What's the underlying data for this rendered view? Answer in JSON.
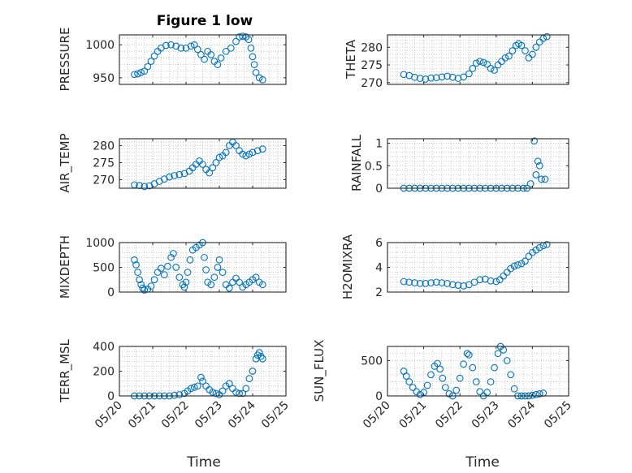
{
  "chart_data": [
    {
      "type": "scatter",
      "title": "Figure 1 low",
      "ylabel": "PRESSURE",
      "xlim": [
        "05/20",
        "05/25"
      ],
      "ylim": [
        940,
        1015
      ],
      "yticks": [
        950,
        1000
      ],
      "grid": true,
      "points": [
        [
          20.45,
          955
        ],
        [
          20.55,
          956
        ],
        [
          20.65,
          958
        ],
        [
          20.75,
          960
        ],
        [
          20.85,
          967
        ],
        [
          20.95,
          975
        ],
        [
          21.05,
          983
        ],
        [
          21.15,
          990
        ],
        [
          21.25,
          995
        ],
        [
          21.4,
          999
        ],
        [
          21.55,
          1000
        ],
        [
          21.7,
          998
        ],
        [
          21.85,
          995
        ],
        [
          22.0,
          995
        ],
        [
          22.15,
          998
        ],
        [
          22.25,
          1000
        ],
        [
          22.35,
          993
        ],
        [
          22.45,
          985
        ],
        [
          22.55,
          978
        ],
        [
          22.65,
          990
        ],
        [
          22.75,
          985
        ],
        [
          22.85,
          975
        ],
        [
          22.95,
          970
        ],
        [
          23.05,
          980
        ],
        [
          23.2,
          990
        ],
        [
          23.35,
          995
        ],
        [
          23.5,
          1005
        ],
        [
          23.6,
          1012
        ],
        [
          23.7,
          1013
        ],
        [
          23.8,
          1012
        ],
        [
          23.88,
          1008
        ],
        [
          23.95,
          995
        ],
        [
          24.0,
          982
        ],
        [
          24.05,
          970
        ],
        [
          24.1,
          958
        ],
        [
          24.2,
          950
        ],
        [
          24.3,
          947
        ]
      ]
    },
    {
      "type": "scatter",
      "ylabel": "THETA",
      "xlim": [
        "05/20",
        "05/25"
      ],
      "ylim": [
        269.5,
        283.5
      ],
      "yticks": [
        270,
        275,
        280
      ],
      "grid": true,
      "points": [
        [
          20.45,
          272.3
        ],
        [
          20.6,
          272
        ],
        [
          20.75,
          271.5
        ],
        [
          20.9,
          271.2
        ],
        [
          21.05,
          271
        ],
        [
          21.2,
          271.3
        ],
        [
          21.35,
          271.4
        ],
        [
          21.5,
          271.6
        ],
        [
          21.65,
          271.8
        ],
        [
          21.8,
          271.5
        ],
        [
          21.95,
          271.2
        ],
        [
          22.1,
          271.6
        ],
        [
          22.25,
          272.5
        ],
        [
          22.35,
          274
        ],
        [
          22.45,
          275.5
        ],
        [
          22.55,
          276
        ],
        [
          22.65,
          275.7
        ],
        [
          22.75,
          275.2
        ],
        [
          22.85,
          274
        ],
        [
          22.95,
          273.5
        ],
        [
          23.05,
          275
        ],
        [
          23.15,
          276
        ],
        [
          23.25,
          277
        ],
        [
          23.35,
          277.5
        ],
        [
          23.45,
          279
        ],
        [
          23.55,
          280.5
        ],
        [
          23.62,
          281
        ],
        [
          23.7,
          280.5
        ],
        [
          23.8,
          279
        ],
        [
          23.9,
          277
        ],
        [
          24.0,
          278
        ],
        [
          24.1,
          280
        ],
        [
          24.2,
          281.5
        ],
        [
          24.3,
          282.5
        ],
        [
          24.4,
          283
        ]
      ]
    },
    {
      "type": "scatter",
      "ylabel": "AIR_TEMP",
      "xlim": [
        "05/20",
        "05/25"
      ],
      "ylim": [
        267.5,
        282
      ],
      "yticks": [
        270,
        275,
        280
      ],
      "grid": true,
      "points": [
        [
          20.45,
          268.5
        ],
        [
          20.6,
          268.3
        ],
        [
          20.75,
          268
        ],
        [
          20.9,
          268.2
        ],
        [
          21.05,
          268.8
        ],
        [
          21.2,
          269.5
        ],
        [
          21.35,
          270.2
        ],
        [
          21.5,
          270.8
        ],
        [
          21.65,
          271.2
        ],
        [
          21.8,
          271.5
        ],
        [
          21.95,
          271.8
        ],
        [
          22.1,
          272.5
        ],
        [
          22.2,
          273.5
        ],
        [
          22.3,
          274.5
        ],
        [
          22.4,
          275.5
        ],
        [
          22.5,
          274.5
        ],
        [
          22.6,
          273
        ],
        [
          22.7,
          272
        ],
        [
          22.8,
          273.5
        ],
        [
          22.9,
          275
        ],
        [
          23.0,
          276.5
        ],
        [
          23.1,
          277
        ],
        [
          23.2,
          278
        ],
        [
          23.3,
          280
        ],
        [
          23.4,
          281
        ],
        [
          23.5,
          280
        ],
        [
          23.6,
          278.5
        ],
        [
          23.7,
          277.5
        ],
        [
          23.8,
          277
        ],
        [
          23.9,
          277.5
        ],
        [
          24.0,
          278
        ],
        [
          24.15,
          278.5
        ],
        [
          24.3,
          279
        ]
      ]
    },
    {
      "type": "scatter",
      "ylabel": "RAINFALL",
      "xlim": [
        "05/20",
        "05/25"
      ],
      "ylim": [
        0,
        1.1
      ],
      "yticks": [
        0,
        0.5,
        1
      ],
      "grid": true,
      "points": [
        [
          20.45,
          0
        ],
        [
          20.6,
          0
        ],
        [
          20.75,
          0
        ],
        [
          20.9,
          0
        ],
        [
          21.05,
          0
        ],
        [
          21.2,
          0
        ],
        [
          21.35,
          0
        ],
        [
          21.5,
          0
        ],
        [
          21.65,
          0
        ],
        [
          21.8,
          0
        ],
        [
          21.95,
          0
        ],
        [
          22.1,
          0
        ],
        [
          22.25,
          0
        ],
        [
          22.4,
          0
        ],
        [
          22.55,
          0
        ],
        [
          22.7,
          0
        ],
        [
          22.85,
          0
        ],
        [
          23.0,
          0
        ],
        [
          23.15,
          0
        ],
        [
          23.3,
          0
        ],
        [
          23.45,
          0
        ],
        [
          23.6,
          0
        ],
        [
          23.75,
          0
        ],
        [
          23.85,
          0
        ],
        [
          23.95,
          0.1
        ],
        [
          24.05,
          1.05
        ],
        [
          24.1,
          0.3
        ],
        [
          24.15,
          0.6
        ],
        [
          24.2,
          0.5
        ],
        [
          24.25,
          0.2
        ],
        [
          24.35,
          0.2
        ]
      ]
    },
    {
      "type": "scatter",
      "ylabel": "MIXDEPTH",
      "xlim": [
        "05/20",
        "05/25"
      ],
      "ylim": [
        0,
        1000
      ],
      "yticks": [
        0,
        500,
        1000
      ],
      "grid": true,
      "points": [
        [
          20.45,
          650
        ],
        [
          20.5,
          550
        ],
        [
          20.55,
          400
        ],
        [
          20.6,
          250
        ],
        [
          20.65,
          150
        ],
        [
          20.7,
          80
        ],
        [
          20.75,
          40
        ],
        [
          20.85,
          60
        ],
        [
          20.95,
          120
        ],
        [
          21.05,
          250
        ],
        [
          21.15,
          400
        ],
        [
          21.25,
          480
        ],
        [
          21.35,
          350
        ],
        [
          21.45,
          520
        ],
        [
          21.55,
          700
        ],
        [
          21.62,
          780
        ],
        [
          21.7,
          500
        ],
        [
          21.8,
          300
        ],
        [
          21.9,
          150
        ],
        [
          21.95,
          100
        ],
        [
          22.0,
          200
        ],
        [
          22.05,
          400
        ],
        [
          22.12,
          650
        ],
        [
          22.2,
          850
        ],
        [
          22.3,
          900
        ],
        [
          22.4,
          950
        ],
        [
          22.5,
          1000
        ],
        [
          22.55,
          700
        ],
        [
          22.6,
          450
        ],
        [
          22.65,
          200
        ],
        [
          22.75,
          150
        ],
        [
          22.85,
          300
        ],
        [
          22.95,
          500
        ],
        [
          23.0,
          650
        ],
        [
          23.1,
          400
        ],
        [
          23.2,
          150
        ],
        [
          23.3,
          80
        ],
        [
          23.4,
          200
        ],
        [
          23.5,
          280
        ],
        [
          23.6,
          200
        ],
        [
          23.7,
          100
        ],
        [
          23.8,
          150
        ],
        [
          23.9,
          200
        ],
        [
          24.0,
          250
        ],
        [
          24.1,
          300
        ],
        [
          24.2,
          200
        ],
        [
          24.3,
          150
        ]
      ]
    },
    {
      "type": "scatter",
      "ylabel": "H2OMIXRA",
      "xlim": [
        "05/20",
        "05/25"
      ],
      "ylim": [
        2,
        6
      ],
      "yticks": [
        2,
        4,
        6
      ],
      "grid": true,
      "points": [
        [
          20.45,
          2.85
        ],
        [
          20.6,
          2.8
        ],
        [
          20.75,
          2.75
        ],
        [
          20.9,
          2.7
        ],
        [
          21.05,
          2.7
        ],
        [
          21.2,
          2.75
        ],
        [
          21.35,
          2.8
        ],
        [
          21.5,
          2.75
        ],
        [
          21.65,
          2.7
        ],
        [
          21.8,
          2.6
        ],
        [
          21.95,
          2.55
        ],
        [
          22.1,
          2.5
        ],
        [
          22.25,
          2.6
        ],
        [
          22.4,
          2.8
        ],
        [
          22.55,
          3.0
        ],
        [
          22.7,
          3.05
        ],
        [
          22.85,
          2.9
        ],
        [
          23.0,
          2.85
        ],
        [
          23.1,
          3.0
        ],
        [
          23.2,
          3.3
        ],
        [
          23.3,
          3.6
        ],
        [
          23.4,
          3.9
        ],
        [
          23.5,
          4.1
        ],
        [
          23.6,
          4.2
        ],
        [
          23.7,
          4.3
        ],
        [
          23.8,
          4.5
        ],
        [
          23.9,
          4.9
        ],
        [
          24.0,
          5.2
        ],
        [
          24.1,
          5.4
        ],
        [
          24.2,
          5.6
        ],
        [
          24.3,
          5.75
        ],
        [
          24.4,
          5.85
        ]
      ]
    },
    {
      "type": "scatter",
      "ylabel": "TERR_MSL",
      "xlim": [
        "05/20",
        "05/25"
      ],
      "ylim": [
        0,
        400
      ],
      "yticks": [
        0,
        200,
        400
      ],
      "grid": true,
      "points": [
        [
          20.45,
          0
        ],
        [
          20.6,
          0
        ],
        [
          20.75,
          0
        ],
        [
          20.9,
          0
        ],
        [
          21.05,
          0
        ],
        [
          21.2,
          0
        ],
        [
          21.35,
          0
        ],
        [
          21.5,
          0
        ],
        [
          21.65,
          5
        ],
        [
          21.8,
          10
        ],
        [
          21.95,
          20
        ],
        [
          22.05,
          40
        ],
        [
          22.15,
          60
        ],
        [
          22.25,
          70
        ],
        [
          22.35,
          80
        ],
        [
          22.45,
          150
        ],
        [
          22.5,
          120
        ],
        [
          22.6,
          80
        ],
        [
          22.7,
          50
        ],
        [
          22.8,
          30
        ],
        [
          22.9,
          20
        ],
        [
          23.0,
          10
        ],
        [
          23.1,
          40
        ],
        [
          23.2,
          80
        ],
        [
          23.3,
          100
        ],
        [
          23.4,
          60
        ],
        [
          23.5,
          30
        ],
        [
          23.6,
          20
        ],
        [
          23.7,
          20
        ],
        [
          23.8,
          60
        ],
        [
          23.9,
          140
        ],
        [
          24.0,
          200
        ],
        [
          24.1,
          300
        ],
        [
          24.15,
          330
        ],
        [
          24.2,
          350
        ],
        [
          24.25,
          320
        ],
        [
          24.3,
          300
        ]
      ]
    },
    {
      "type": "scatter",
      "ylabel": "SUN_FLUX",
      "xlim": [
        "05/20",
        "05/25"
      ],
      "ylim": [
        0,
        700
      ],
      "yticks": [
        0,
        500
      ],
      "grid": true,
      "points": [
        [
          20.45,
          350
        ],
        [
          20.52,
          280
        ],
        [
          20.6,
          200
        ],
        [
          20.7,
          120
        ],
        [
          20.8,
          60
        ],
        [
          20.9,
          20
        ],
        [
          21.0,
          50
        ],
        [
          21.1,
          150
        ],
        [
          21.2,
          300
        ],
        [
          21.3,
          420
        ],
        [
          21.38,
          460
        ],
        [
          21.45,
          380
        ],
        [
          21.52,
          250
        ],
        [
          21.6,
          120
        ],
        [
          21.7,
          30
        ],
        [
          21.8,
          0
        ],
        [
          21.9,
          80
        ],
        [
          22.0,
          250
        ],
        [
          22.1,
          450
        ],
        [
          22.2,
          600
        ],
        [
          22.25,
          580
        ],
        [
          22.35,
          400
        ],
        [
          22.45,
          200
        ],
        [
          22.55,
          60
        ],
        [
          22.65,
          0
        ],
        [
          22.75,
          50
        ],
        [
          22.85,
          200
        ],
        [
          22.95,
          400
        ],
        [
          23.05,
          600
        ],
        [
          23.12,
          700
        ],
        [
          23.2,
          650
        ],
        [
          23.3,
          500
        ],
        [
          23.4,
          300
        ],
        [
          23.5,
          100
        ],
        [
          23.6,
          0
        ],
        [
          23.7,
          0
        ],
        [
          23.8,
          0
        ],
        [
          23.9,
          0
        ],
        [
          24.0,
          10
        ],
        [
          24.1,
          20
        ],
        [
          24.2,
          30
        ],
        [
          24.3,
          40
        ]
      ]
    }
  ],
  "xtick_labels": [
    "05/20",
    "05/21",
    "05/22",
    "05/23",
    "05/24",
    "05/25"
  ],
  "xaxis_label": "Time",
  "colors": {
    "marker": "#0072bd",
    "axis": "#262626",
    "grid": "#bdbdbd"
  }
}
